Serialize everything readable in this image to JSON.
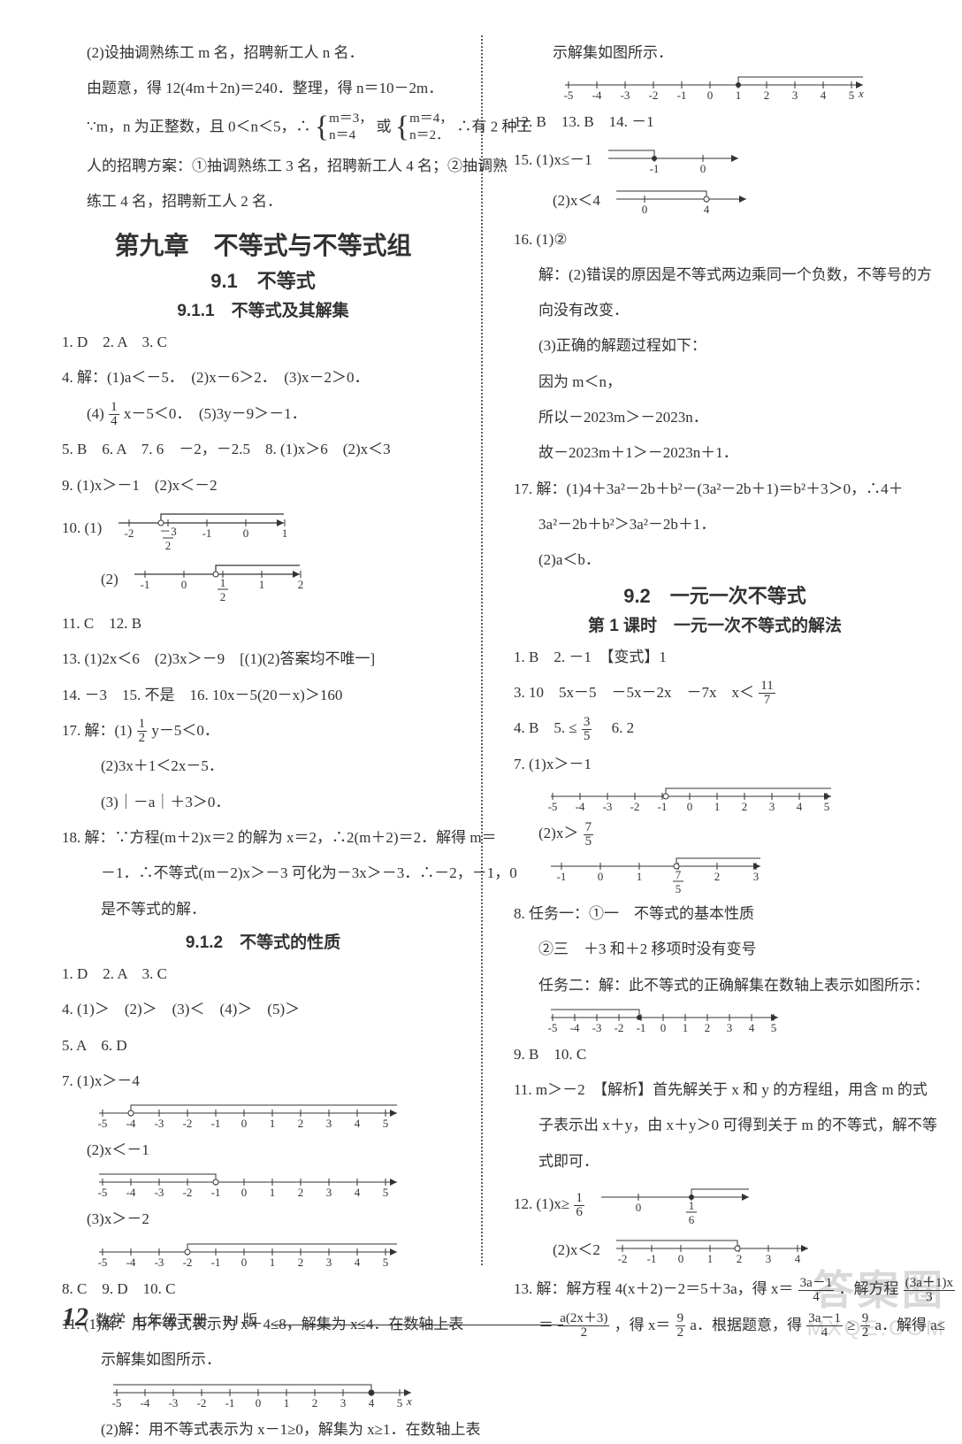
{
  "left": {
    "l1": "(2)设抽调熟练工 m 名，招聘新工人 n 名．",
    "l2": "由题意，得 12(4m＋2n)＝240．整理，得 n＝10－2m．",
    "l3a": "∵m，n 为正整数，且 0＜n＜5，∴",
    "l3b_m1": "m＝3，",
    "l3b_n1": "n＝4",
    "l3c": "或",
    "l3d_m2": "m＝4，",
    "l3d_n2": "n＝2．",
    "l3e": "∴有 2 种工",
    "l4": "人的招聘方案：①抽调熟练工 3 名，招聘新工人 4 名；②抽调熟",
    "l5": "练工 4 名，招聘新工人 2 名．",
    "chapter": "第九章　不等式与不等式组",
    "sec91": "9.1　不等式",
    "sub911": "9.1.1　不等式及其解集",
    "a1": "1. D　2. A　3. C",
    "a4": "4. 解：(1)a＜－5．　(2)x－6＞2．　(3)x－2＞0．",
    "a4b_pre": "(4)",
    "a4b_num": "1",
    "a4b_den": "4",
    "a4b_post": "x－5＜0．　(5)3y－9＞－1．",
    "a5": "5. B　6. A　7. 6　－2，－2.5　8. (1)x＞6　(2)x＜3",
    "a9": "9. (1)x＞－1　(2)x＜－2",
    "a10_1": "10. (1)",
    "a10_2": "(2)",
    "a11": "11. C　12. B",
    "a13": "13. (1)2x＜6　(2)3x＞－9　[(1)(2)答案均不唯一]",
    "a14": "14. －3　15. 不是　16. 10x－5(20－x)＞160",
    "a17_pre": "17. 解：(1)",
    "a17_num": "1",
    "a17_den": "2",
    "a17_post": "y－5＜0．",
    "a17_2": "(2)3x＋1＜2x－5．",
    "a17_3": "(3)｜－a｜＋3＞0．",
    "a18a": "18. 解：∵方程(m＋2)x＝2 的解为 x＝2，∴2(m＋2)＝2．解得 m＝",
    "a18b": "－1．∴不等式(m－2)x＞－3 可化为－3x＞－3．∴－2，－1，0",
    "a18c": "是不等式的解．",
    "sub912": "9.1.2　不等式的性质",
    "b1": "1. D　2. A　3. C",
    "b4": "4. (1)＞　(2)＞　(3)＜　(4)＞　(5)＞",
    "b5": "5. A　6. D",
    "b7_1": "7. (1)x＞－4",
    "b7_2": "(2)x＜－1",
    "b7_3": "(3)x＞－2",
    "b8": "8. C　9. D　10. C",
    "b11a": "11. (1)解：用不等式表示为 x＋4≤8，解集为 x≤4．在数轴上表",
    "b11b": "示解集如图所示．",
    "b11c": "(2)解：用不等式表示为 x－1≥0，解集为 x≥1．在数轴上表",
    "nl10_1_ticks": [
      "-2",
      "",
      "-1",
      "0",
      "1"
    ],
    "nl10_1_extra_num": "3",
    "nl10_1_extra_den": "2",
    "nl10_1_extra_neg": "－",
    "nl10_2_ticks": [
      "-1",
      "0",
      "",
      "1",
      "2"
    ],
    "nl10_2_extra_num": "1",
    "nl10_2_extra_den": "2",
    "nl_b7_ticks": [
      "-5",
      "-4",
      "-3",
      "-2",
      "-1",
      "0",
      "1",
      "2",
      "3",
      "4",
      "5"
    ]
  },
  "right": {
    "r0": "示解集如图所示．",
    "r_nl11_ticks": [
      "-5",
      "-4",
      "-3",
      "-2",
      "-1",
      "0",
      "1",
      "2",
      "3",
      "4",
      "5"
    ],
    "r12": "12. B　13. B　14. －1",
    "r15_1": "15. (1)x≤－1",
    "r15_2": "(2)x＜4",
    "r16_1": "16. (1)②",
    "r16_2": "解：(2)错误的原因是不等式两边乘同一个负数，不等号的方",
    "r16_3": "向没有改变．",
    "r16_4": "(3)正确的解题过程如下：",
    "r16_5": "因为 m＜n，",
    "r16_6": "所以－2023m＞－2023n．",
    "r16_7": "故－2023m＋1＞－2023n＋1．",
    "r17a": "17. 解：(1)4＋3a²－2b＋b²－(3a²－2b＋1)＝b²＋3＞0，∴4＋",
    "r17b": "3a²－2b＋b²＞3a²－2b＋1．",
    "r17c": "(2)a＜b．",
    "sec92": "9.2　一元一次不等式",
    "sub92_1": "第 1 课时　一元一次不等式的解法",
    "c1": "1. B　2. －1　【变式】1",
    "c3_pre": "3. 10　5x－5　－5x－2x　－7x　x＜",
    "c3_num": "11",
    "c3_den": "7",
    "c4_pre": "4. B　5. ≤",
    "c4_num": "3",
    "c4_den": "5",
    "c4_post": "　6. 2",
    "c7_1": "7. (1)x＞－1",
    "c7_2_pre": "(2)x＞",
    "c7_2_num": "7",
    "c7_2_den": "5",
    "c8a": "8. 任务一：①一　不等式的基本性质",
    "c8b": "②三　＋3 和＋2 移项时没有变号",
    "c8c": "任务二：解：此不等式的正确解集在数轴上表示如图所示：",
    "c9": "9. B　10. C",
    "c11a": "11. m＞－2　【解析】首先解关于 x 和 y 的方程组，用含 m 的式",
    "c11b": "子表示出 x＋y，由 x＋y＞0 可得到关于 m 的不等式，解不等",
    "c11c": "式即可．",
    "c12_1_pre": "12. (1)x≥",
    "c12_1_num": "1",
    "c12_1_den": "6",
    "c12_2": "(2)x＜2",
    "c13a_pre": "13. 解：解方程 4(x＋2)－2＝5＋3a，得 x＝",
    "c13a_num": "3a－1",
    "c13a_den": "4",
    "c13a_mid": "．解方程",
    "c13b_num": "(3a＋1)x",
    "c13b_den": "3",
    "c13c_pre": "＝",
    "c13c_num": "a(2x＋3)",
    "c13c_den": "2",
    "c13c_mid": "，得 x＝",
    "c13d_num": "9",
    "c13d_den": "2",
    "c13c_mid2": "a．根据题意，得",
    "c13e_num": "3a－1",
    "c13e_den": "4",
    "c13e_mid": "≥",
    "c13f_num": "9",
    "c13f_den": "2",
    "c13f_post": "a．解得 a≤",
    "nl_c7_ticks": [
      "-5",
      "-4",
      "-3",
      "-2",
      "-1",
      "0",
      "1",
      "2",
      "3",
      "4",
      "5"
    ],
    "nl_c7b_ticks": [
      "-1",
      "0",
      "1",
      "",
      "2",
      "3"
    ],
    "nl_c7b_extra_num": "7",
    "nl_c7b_extra_den": "5",
    "nl_c8_ticks": [
      "-5",
      "-4",
      "-3",
      "-2",
      "-1",
      "0",
      "1",
      "2",
      "3",
      "4",
      "5"
    ],
    "nl_15_1_ticks": [
      "-1",
      "0"
    ],
    "nl_15_2_ticks": [
      "0",
      "4"
    ],
    "nl_12_1_ticks": [
      "0",
      ""
    ],
    "nl_12_1_num": "1",
    "nl_12_1_den": "6",
    "nl_12_2_ticks": [
      "-2",
      "-1",
      "0",
      "1",
      "2",
      "3",
      "4"
    ]
  },
  "footer": {
    "pageno": "12",
    "subject": "数学",
    "grade": "七年级下册　RJ 版"
  },
  "watermark": {
    "wm1": "答案圈",
    "wm2": "MXQE.COM"
  },
  "style": {
    "ink": "#323232",
    "arrow": "#333333"
  }
}
